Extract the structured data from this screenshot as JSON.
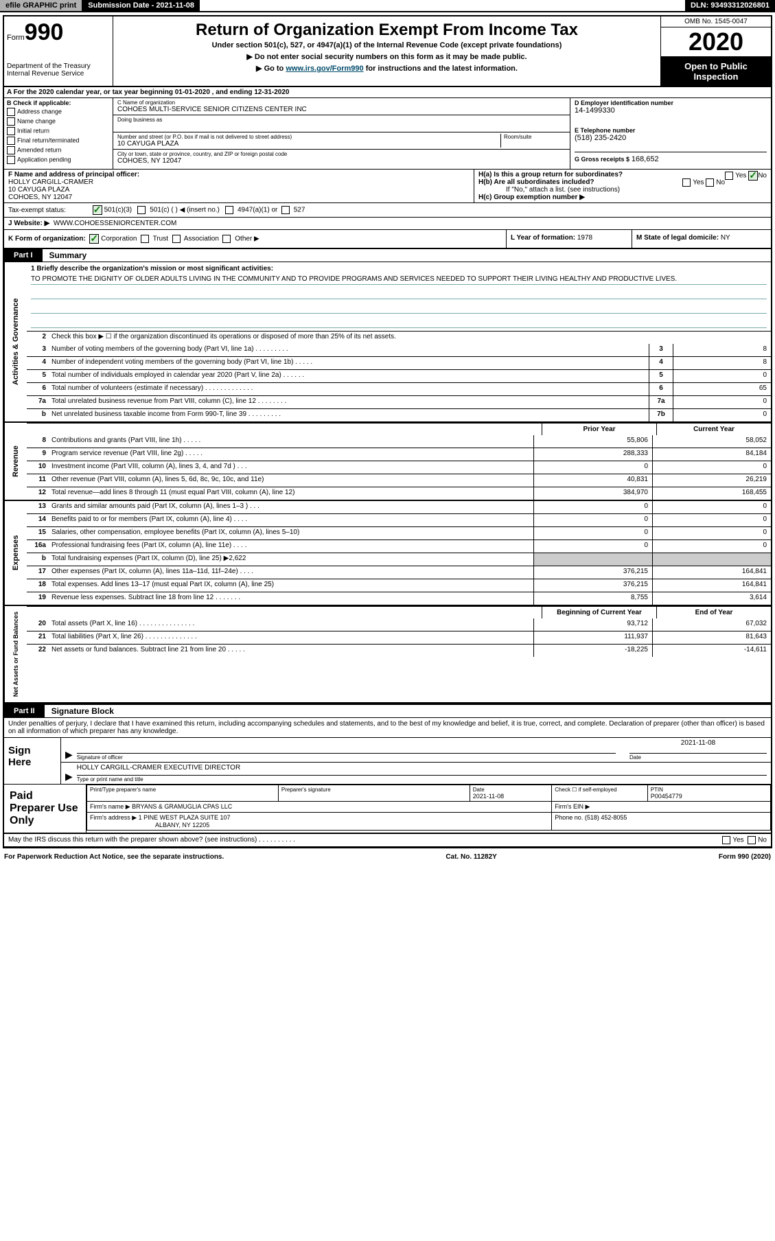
{
  "topbar": {
    "efile": "efile GRAPHIC print",
    "submission": "Submission Date - 2021-11-08",
    "dln": "DLN: 93493312026801"
  },
  "header": {
    "form_prefix": "Form",
    "form_number": "990",
    "dept": "Department of the Treasury\nInternal Revenue Service",
    "title": "Return of Organization Exempt From Income Tax",
    "sub1": "Under section 501(c), 527, or 4947(a)(1) of the Internal Revenue Code (except private foundations)",
    "sub2": "▶ Do not enter social security numbers on this form as it may be made public.",
    "sub3_pre": "▶ Go to ",
    "sub3_link": "www.irs.gov/Form990",
    "sub3_post": " for instructions and the latest information.",
    "omb": "OMB No. 1545-0047",
    "year": "2020",
    "open_public": "Open to Public Inspection"
  },
  "period": "A For the 2020 calendar year, or tax year beginning 01-01-2020    , and ending 12-31-2020",
  "boxB": {
    "label": "B Check if applicable:",
    "opts": [
      "Address change",
      "Name change",
      "Initial return",
      "Final return/terminated",
      "Amended return",
      "Application pending"
    ]
  },
  "boxC": {
    "name_label": "C Name of organization",
    "name": "COHOES MULTI-SERVICE SENIOR CITIZENS CENTER INC",
    "dba_label": "Doing business as",
    "addr_label": "Number and street (or P.O. box if mail is not delivered to street address)",
    "room_label": "Room/suite",
    "addr": "10 CAYUGA PLAZA",
    "city_label": "City or town, state or province, country, and ZIP or foreign postal code",
    "city": "COHOES, NY  12047"
  },
  "boxD": {
    "ein_label": "D Employer identification number",
    "ein": "14-1499330",
    "phone_label": "E Telephone number",
    "phone": "(518) 235-2420",
    "gross_label": "G Gross receipts $",
    "gross": "168,652"
  },
  "boxF": {
    "label": "F  Name and address of principal officer:",
    "name": "HOLLY CARGILL-CRAMER",
    "addr1": "10 CAYUGA PLAZA",
    "addr2": "COHOES, NY  12047"
  },
  "boxH": {
    "a": "H(a)  Is this a group return for subordinates?",
    "a_yes": "Yes",
    "a_no": "No",
    "b": "H(b)  Are all subordinates included?",
    "b_yes": "Yes",
    "b_no": "No",
    "b_note": "If \"No,\" attach a list. (see instructions)",
    "c": "H(c)  Group exemption number ▶"
  },
  "taxexempt": {
    "label": "Tax-exempt status:",
    "o1": "501(c)(3)",
    "o2": "501(c) (  ) ◀ (insert no.)",
    "o3": "4947(a)(1) or",
    "o4": "527"
  },
  "websiteJ": {
    "label": "J   Website: ▶",
    "val": "WWW.COHOESSENIORCENTER.COM"
  },
  "rowK": {
    "label": "K Form of organization:",
    "o1": "Corporation",
    "o2": "Trust",
    "o3": "Association",
    "o4": "Other ▶",
    "l_label": "L Year of formation:",
    "l_val": "1978",
    "m_label": "M State of legal domicile:",
    "m_val": "NY"
  },
  "part1": {
    "tab": "Part I",
    "title": "Summary"
  },
  "side_labels": {
    "s1": "Activities & Governance",
    "s2": "Revenue",
    "s3": "Expenses",
    "s4": "Net Assets or Fund Balances"
  },
  "mission": {
    "label": "1  Briefly describe the organization's mission or most significant activities:",
    "text": "TO PROMOTE THE DIGNITY OF OLDER ADULTS LIVING IN THE COMMUNITY AND TO PROVIDE PROGRAMS AND SERVICES NEEDED TO SUPPORT THEIR LIVING HEALTHY AND PRODUCTIVE LIVES."
  },
  "line2": "Check this box ▶ ☐  if the organization discontinued its operations or disposed of more than 25% of its net assets.",
  "gov_lines": [
    {
      "n": "3",
      "d": "Number of voting members of the governing body (Part VI, line 1a)  .   .   .   .   .   .   .   .   .",
      "b": "3",
      "v": "8"
    },
    {
      "n": "4",
      "d": "Number of independent voting members of the governing body (Part VI, line 1b)  .   .   .   .   .",
      "b": "4",
      "v": "8"
    },
    {
      "n": "5",
      "d": "Total number of individuals employed in calendar year 2020 (Part V, line 2a)  .   .   .   .   .   .",
      "b": "5",
      "v": "0"
    },
    {
      "n": "6",
      "d": "Total number of volunteers (estimate if necessary)    .    .    .    .    .    .    .    .    .    .    .    .    .",
      "b": "6",
      "v": "65"
    },
    {
      "n": "7a",
      "d": "Total unrelated business revenue from Part VIII, column (C), line 12   .    .    .    .    .    .    .    .",
      "b": "7a",
      "v": "0"
    },
    {
      "n": "b",
      "d": "Net unrelated business taxable income from Form 990-T, line 39   .    .    .    .    .    .    .    .    .",
      "b": "7b",
      "v": "0"
    }
  ],
  "col_headers": {
    "prior": "Prior Year",
    "current": "Current Year",
    "beg": "Beginning of Current Year",
    "end": "End of Year"
  },
  "rev_lines": [
    {
      "n": "8",
      "d": "Contributions and grants (Part VIII, line 1h)   .    .    .    .    .",
      "p": "55,806",
      "c": "58,052"
    },
    {
      "n": "9",
      "d": "Program service revenue (Part VIII, line 2g)   .    .    .    .    .",
      "p": "288,333",
      "c": "84,184"
    },
    {
      "n": "10",
      "d": "Investment income (Part VIII, column (A), lines 3, 4, and 7d )   .    .    .",
      "p": "0",
      "c": "0"
    },
    {
      "n": "11",
      "d": "Other revenue (Part VIII, column (A), lines 5, 6d, 8c, 9c, 10c, and 11e)",
      "p": "40,831",
      "c": "26,219"
    },
    {
      "n": "12",
      "d": "Total revenue—add lines 8 through 11 (must equal Part VIII, column (A), line 12)",
      "p": "384,970",
      "c": "168,455"
    }
  ],
  "exp_lines": [
    {
      "n": "13",
      "d": "Grants and similar amounts paid (Part IX, column (A), lines 1–3 )  .   .   .",
      "p": "0",
      "c": "0"
    },
    {
      "n": "14",
      "d": "Benefits paid to or for members (Part IX, column (A), line 4)  .    .    .    .",
      "p": "0",
      "c": "0"
    },
    {
      "n": "15",
      "d": "Salaries, other compensation, employee benefits (Part IX, column (A), lines 5–10)",
      "p": "0",
      "c": "0"
    },
    {
      "n": "16a",
      "d": "Professional fundraising fees (Part IX, column (A), line 11e)  .    .    .    .",
      "p": "0",
      "c": "0"
    },
    {
      "n": "b",
      "d": "Total fundraising expenses (Part IX, column (D), line 25) ▶2,622",
      "p": "",
      "c": "",
      "shaded": true
    },
    {
      "n": "17",
      "d": "Other expenses (Part IX, column (A), lines 11a–11d, 11f–24e)  .    .    .    .",
      "p": "376,215",
      "c": "164,841"
    },
    {
      "n": "18",
      "d": "Total expenses. Add lines 13–17 (must equal Part IX, column (A), line 25)",
      "p": "376,215",
      "c": "164,841"
    },
    {
      "n": "19",
      "d": "Revenue less expenses. Subtract line 18 from line 12  .    .    .    .    .    .    .",
      "p": "8,755",
      "c": "3,614"
    }
  ],
  "net_lines": [
    {
      "n": "20",
      "d": "Total assets (Part X, line 16)  .   .   .   .   .   .   .   .   .   .   .   .   .   .   .",
      "p": "93,712",
      "c": "67,032"
    },
    {
      "n": "21",
      "d": "Total liabilities (Part X, line 26)  .   .   .   .   .   .   .   .   .   .   .   .   .   .",
      "p": "111,937",
      "c": "81,643"
    },
    {
      "n": "22",
      "d": "Net assets or fund balances. Subtract line 21 from line 20  .   .   .   .   .",
      "p": "-18,225",
      "c": "-14,611"
    }
  ],
  "part2": {
    "tab": "Part II",
    "title": "Signature Block",
    "declare": "Under penalties of perjury, I declare that I have examined this return, including accompanying schedules and statements, and to the best of my knowledge and belief, it is true, correct, and complete. Declaration of preparer (other than officer) is based on all information of which preparer has any knowledge."
  },
  "sign": {
    "label": "Sign Here",
    "sig_officer": "Signature of officer",
    "date_label": "Date",
    "date": "2021-11-08",
    "name": "HOLLY CARGILL-CRAMER  EXECUTIVE DIRECTOR",
    "name_label": "Type or print name and title"
  },
  "paid": {
    "label": "Paid Preparer Use Only",
    "h1": "Print/Type preparer's name",
    "h2": "Preparer's signature",
    "h3": "Date",
    "date": "2021-11-08",
    "h4": "Check ☐ if self-employed",
    "h5": "PTIN",
    "ptin": "P00454779",
    "firm_label": "Firm's name      ▶",
    "firm": "BRYANS & GRAMUGLIA CPAS LLC",
    "ein_label": "Firm's EIN ▶",
    "addr_label": "Firm's address ▶",
    "addr1": "1 PINE WEST PLAZA SUITE 107",
    "addr2": "ALBANY, NY  12205",
    "phone_label": "Phone no.",
    "phone": "(518) 452-8055"
  },
  "discuss": "May the IRS discuss this return with the preparer shown above? (see instructions)   .    .    .    .    .    .    .    .    .    .",
  "discuss_yes": "Yes",
  "discuss_no": "No",
  "footer": {
    "left": "For Paperwork Reduction Act Notice, see the separate instructions.",
    "mid": "Cat. No. 11282Y",
    "right": "Form 990 (2020)"
  },
  "colors": {
    "link": "#004b6b",
    "rule": "#7aa6a6"
  }
}
